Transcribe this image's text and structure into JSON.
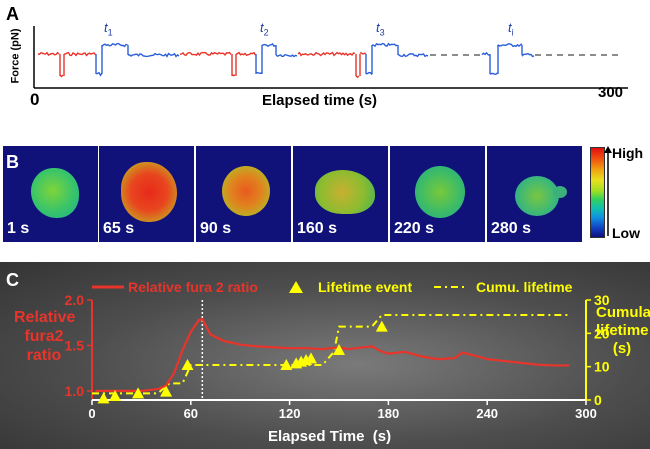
{
  "panelA": {
    "letter": "A",
    "ylabel": "Force (pN)",
    "xlabel": "Elapsed time (s)",
    "x_start": "0",
    "x_end": "300",
    "event_labels": [
      {
        "base": "t",
        "sub": "1"
      },
      {
        "base": "t",
        "sub": "2"
      },
      {
        "base": "t",
        "sub": "3"
      },
      {
        "base": "t",
        "sub": "i"
      }
    ],
    "colors": {
      "red_trace": "#e8342a",
      "blue_trace": "#2b5fd9",
      "label_blue": "#1f3ea8"
    }
  },
  "panelB": {
    "letter": "B",
    "frames": [
      "1 s",
      "65 s",
      "90 s",
      "160 s",
      "220 s",
      "280 s"
    ],
    "colorbar": {
      "high": "High",
      "low": "Low"
    }
  },
  "chart_data": {
    "type": "line",
    "panel_letter": "C",
    "xlabel": "Elapsed Time  (s)",
    "ylabel_left": "Relative fura2 ratio",
    "ylabel_right": "Cumulative lifetime (s)",
    "xlim": [
      0,
      300
    ],
    "ylim_left": [
      0.9,
      2.0
    ],
    "ylim_right": [
      0,
      30
    ],
    "x_ticks": [
      "0",
      "60",
      "120",
      "180",
      "240",
      "300"
    ],
    "y_ticks_left": [
      "1.0",
      "1.5",
      "2.0"
    ],
    "y_ticks_right": [
      "0",
      "10",
      "20",
      "30"
    ],
    "legend": [
      "Relative fura 2 ratio",
      "Lifetime event",
      "Cumu. lifetime"
    ],
    "vertical_marker_x": 67,
    "series": [
      {
        "name": "Relative fura 2 ratio",
        "axis": "left",
        "color": "#e8342a",
        "x": [
          2,
          10,
          20,
          30,
          40,
          45,
          50,
          55,
          60,
          65,
          67,
          72,
          80,
          90,
          100,
          110,
          120,
          130,
          140,
          145,
          150,
          155,
          160,
          170,
          175,
          180,
          190,
          200,
          210,
          220,
          225,
          230,
          240,
          250,
          260,
          270,
          280,
          290
        ],
        "y": [
          1.0,
          1.0,
          1.0,
          1.0,
          1.02,
          1.06,
          1.2,
          1.45,
          1.65,
          1.78,
          1.79,
          1.62,
          1.55,
          1.51,
          1.49,
          1.48,
          1.47,
          1.47,
          1.46,
          1.47,
          1.48,
          1.46,
          1.47,
          1.49,
          1.44,
          1.41,
          1.43,
          1.38,
          1.35,
          1.36,
          1.42,
          1.4,
          1.35,
          1.33,
          1.31,
          1.29,
          1.28,
          1.28
        ]
      },
      {
        "name": "Lifetime event",
        "axis": "right",
        "color": "#ffff00",
        "x": [
          7,
          14,
          28,
          45,
          58,
          118,
          124,
          127,
          130,
          133,
          150,
          176
        ],
        "y": [
          0.5,
          1.2,
          2,
          2.5,
          10.5,
          10.5,
          11,
          11.5,
          12,
          12.5,
          15,
          22
        ]
      },
      {
        "name": "Cumu. lifetime",
        "axis": "right",
        "color": "#ffff00",
        "x": [
          0,
          40,
          47,
          55,
          60,
          120,
          140,
          147,
          150,
          170,
          176,
          290
        ],
        "y": [
          2,
          2,
          5,
          5,
          10.5,
          10.5,
          10.5,
          14.5,
          22,
          22,
          25.5,
          25.5
        ]
      }
    ]
  }
}
